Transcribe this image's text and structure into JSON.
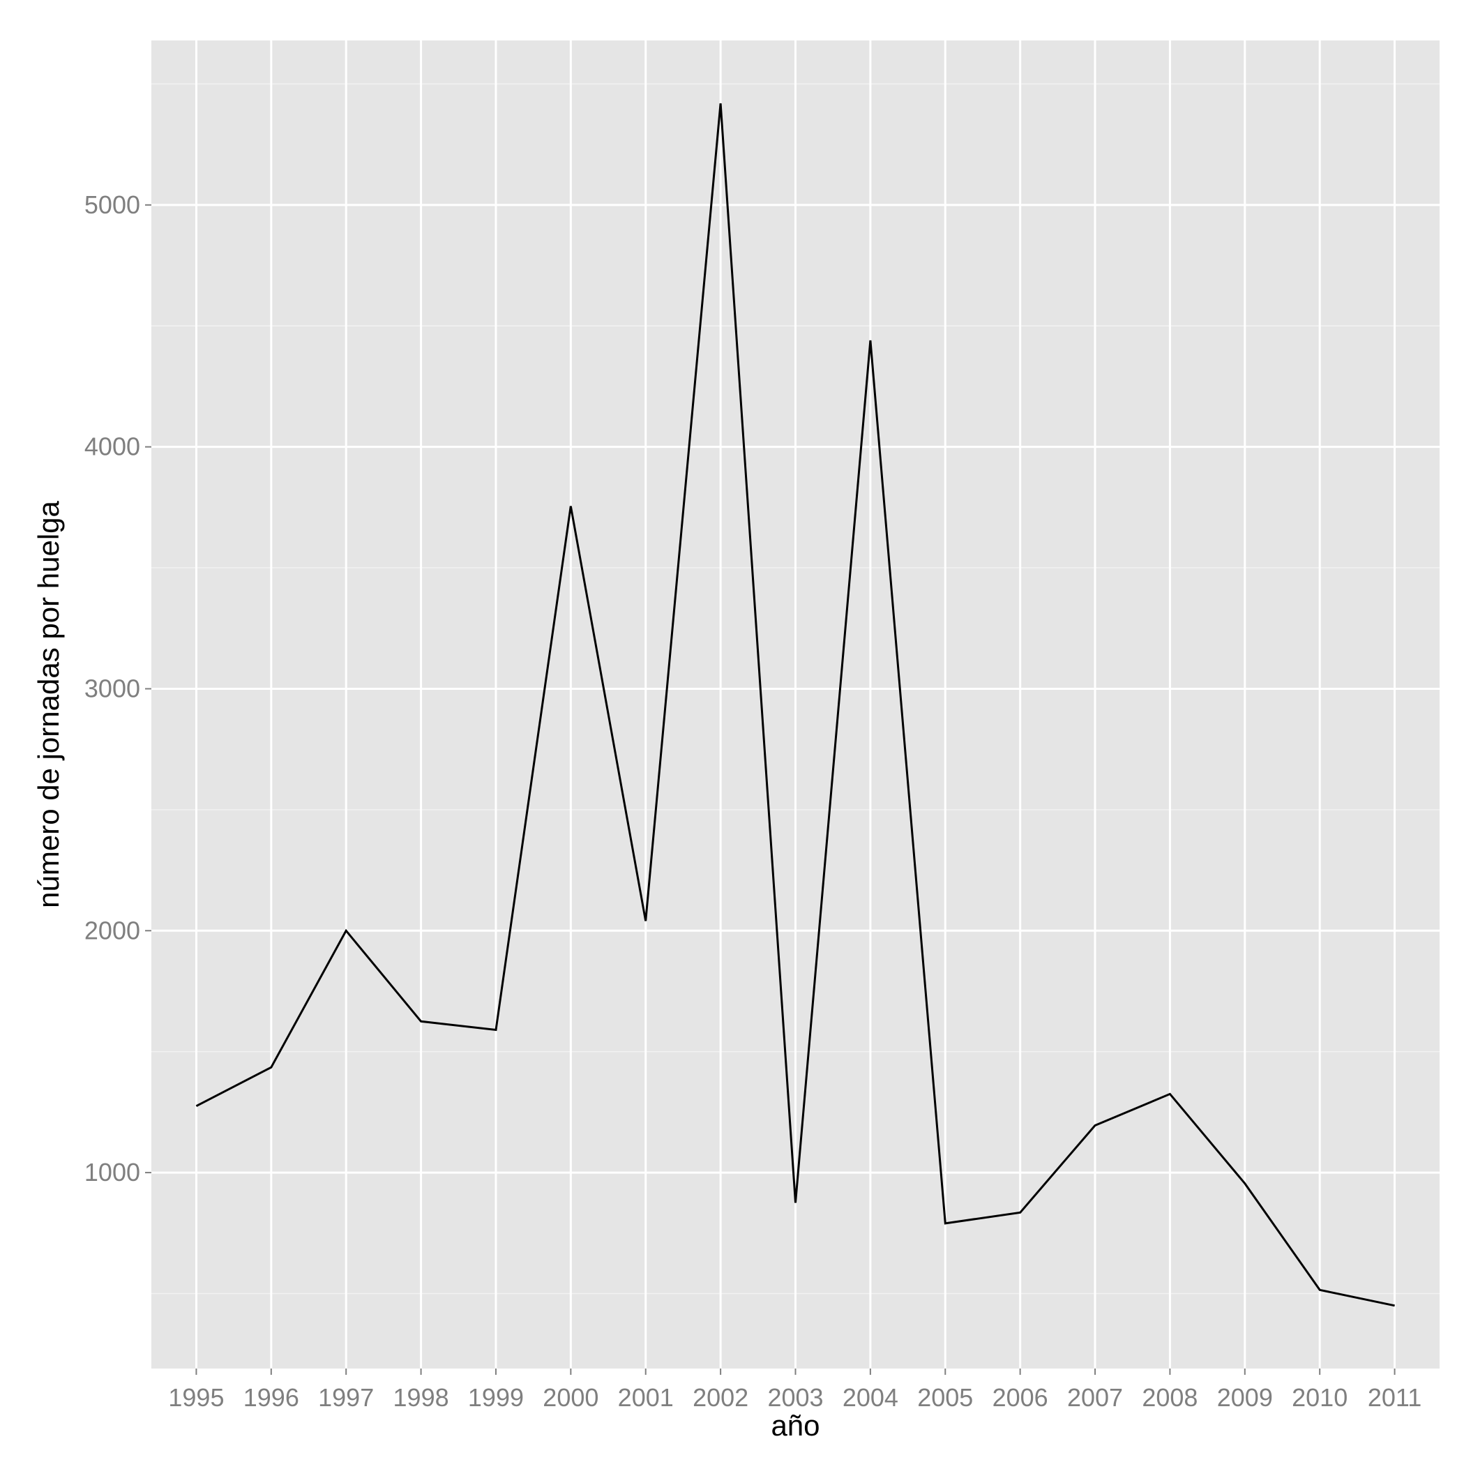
{
  "chart_data": {
    "type": "line",
    "title": "",
    "xlabel": "año",
    "ylabel": "número de jornadas por huelga",
    "x": [
      1995,
      1996,
      1997,
      1998,
      1999,
      2000,
      2001,
      2002,
      2003,
      2004,
      2005,
      2006,
      2007,
      2008,
      2009,
      2010,
      2011
    ],
    "series": [
      {
        "values": [
          1275,
          1435,
          2000,
          1625,
          1590,
          3755,
          2040,
          5420,
          875,
          4440,
          790,
          835,
          1195,
          1325,
          955,
          515,
          450
        ]
      }
    ],
    "xlim": [
      1994.4,
      2011.6
    ],
    "ylim": [
      190,
      5680
    ],
    "y_ticks": [
      1000,
      2000,
      3000,
      4000,
      5000
    ],
    "y_minor_ticks": [
      500,
      1500,
      2500,
      3500,
      4500,
      5500
    ],
    "grid": true,
    "legend": "none",
    "colors": {
      "panel_background": "#e5e5e5",
      "grid_major": "#ffffff",
      "grid_minor": "#f2f2f2",
      "line": "#000000",
      "tick_label": "#7f7f7f"
    }
  }
}
